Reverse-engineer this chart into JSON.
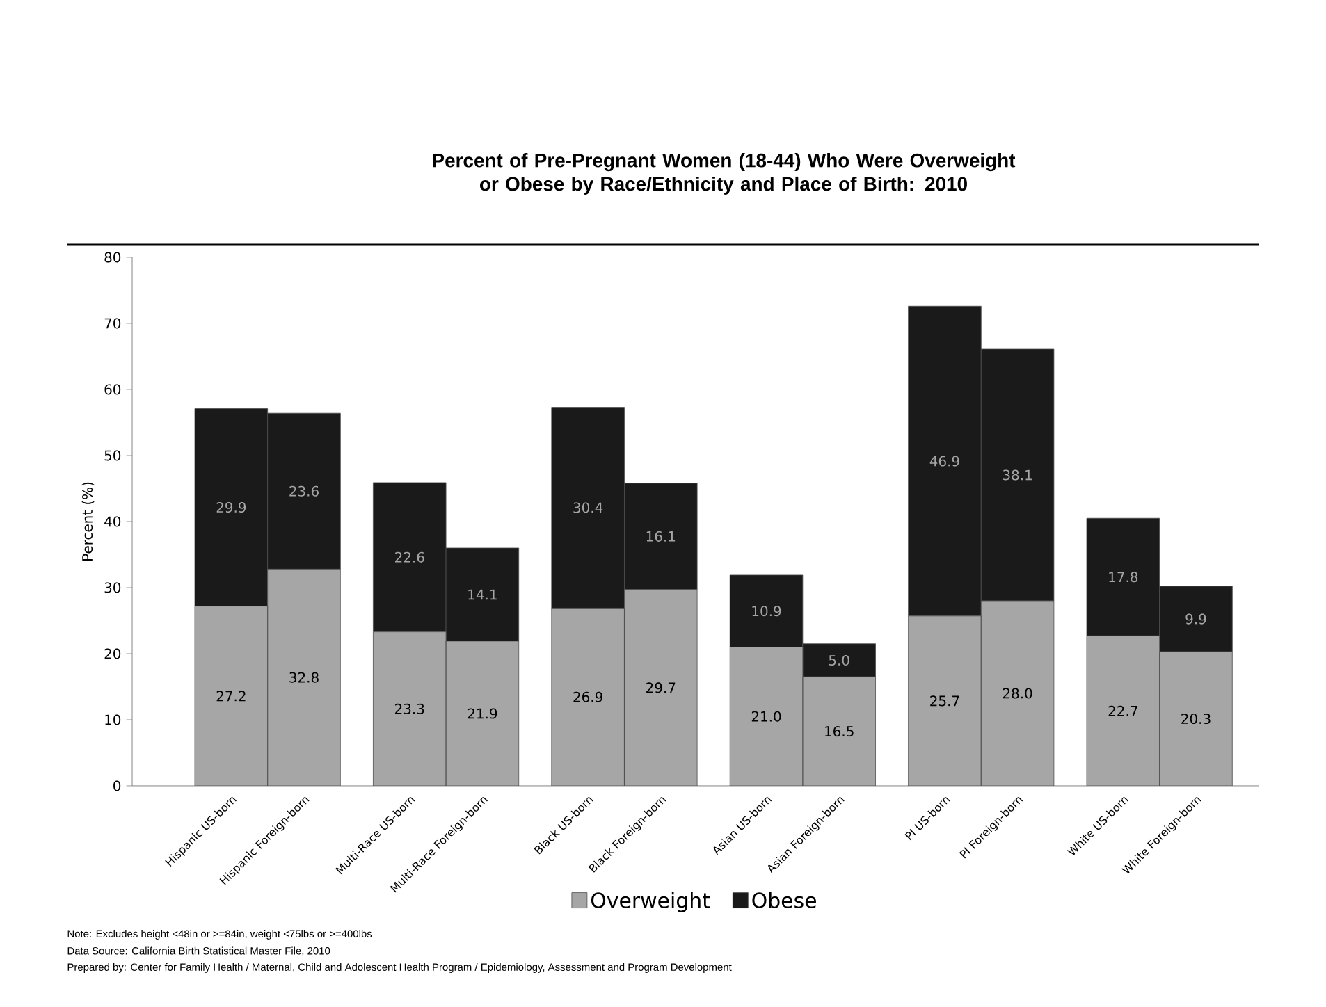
{
  "chart_data": {
    "type": "bar",
    "stacked": true,
    "title": "Percent of Pre-Pregnant Women (18-44) Who Were Overweight or Obese by Race/Ethnicity and Place of Birth: 2010",
    "ylabel": "Percent (%)",
    "categories": [
      "Hispanic US-born",
      "Hispanic Foreign-born",
      "Multi-Race US-born",
      "Multi-Race Foreign-born",
      "Black US-born",
      "Black Foreign-born",
      "Asian US-born",
      "Asian Foreign-born",
      "PI US-born",
      "PI Foreign-born",
      "White US-born",
      "White Foreign-born"
    ],
    "series": [
      {
        "name": "Overweight",
        "color": "#a6a6a6",
        "values": [
          27.2,
          32.8,
          23.3,
          21.9,
          26.9,
          29.7,
          21.0,
          16.5,
          25.7,
          28.0,
          22.7,
          20.3
        ],
        "value_labels": [
          "27.2",
          "32.8",
          "23.3",
          "21.9",
          "26.9",
          "29.7",
          "21.0",
          "16.5",
          "25.7",
          "28.0",
          "22.7",
          "20.3"
        ]
      },
      {
        "name": "Obese",
        "color": "#1a1a1a",
        "values": [
          29.9,
          23.6,
          22.6,
          14.1,
          30.4,
          16.1,
          10.9,
          5.0,
          46.9,
          38.1,
          17.8,
          9.9
        ],
        "value_labels": [
          "29.9",
          "23.6",
          "22.6",
          "14.1",
          "30.4",
          "16.1",
          "10.9",
          "5.0",
          "46.9",
          "38.1",
          "17.8",
          "9.9"
        ]
      }
    ],
    "ylim": [
      0,
      80
    ],
    "yticks": [
      0,
      10,
      20,
      30,
      40,
      50,
      60,
      70,
      80
    ],
    "legend": "bottom",
    "annotations": [
      "Note: Excludes height <48in or >=84in, weight <75lbs or >=400lbs",
      "Data Source: California Birth Statistical Master File, 2010",
      "Prepared by: Center for Family Health / Maternal, Child and Adolescent Health Program / Epidemiology, Assessment and Program Development"
    ]
  }
}
